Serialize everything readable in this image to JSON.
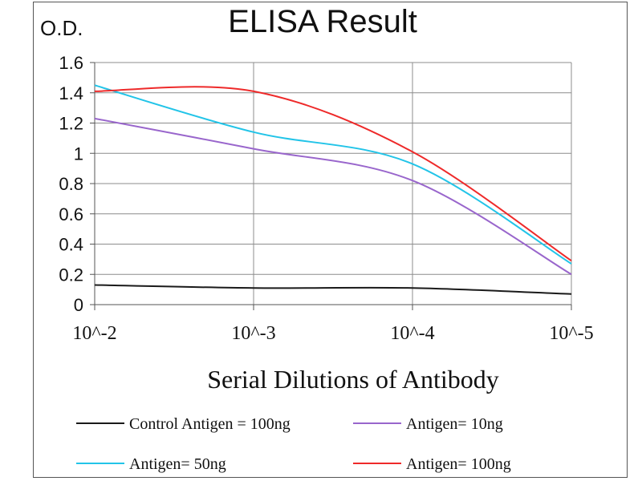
{
  "chart_data": {
    "type": "line",
    "title": "ELISA Result",
    "ylabel": "O.D.",
    "xlabel": "Serial Dilutions  of Antibody",
    "x": [
      "10^-2",
      "10^-3",
      "10^-4",
      "10^-5"
    ],
    "ylim": [
      0,
      1.6
    ],
    "yticks": [
      "0",
      "0.2",
      "0.4",
      "0.6",
      "0.8",
      "1",
      "1.2",
      "1.4",
      "1.6"
    ],
    "grid": true,
    "legend_position": "bottom",
    "series": [
      {
        "name": "Control Antigen = 100ng",
        "color": "#1a1a1a",
        "values": [
          0.13,
          0.11,
          0.11,
          0.07
        ]
      },
      {
        "name": "Antigen= 10ng",
        "color": "#9966cc",
        "values": [
          1.23,
          1.03,
          0.82,
          0.2
        ]
      },
      {
        "name": "Antigen= 50ng",
        "color": "#22c4e8",
        "values": [
          1.45,
          1.14,
          0.93,
          0.27
        ]
      },
      {
        "name": "Antigen= 100ng",
        "color": "#ee2a2a",
        "values": [
          1.41,
          1.41,
          1.01,
          0.29
        ]
      }
    ]
  }
}
